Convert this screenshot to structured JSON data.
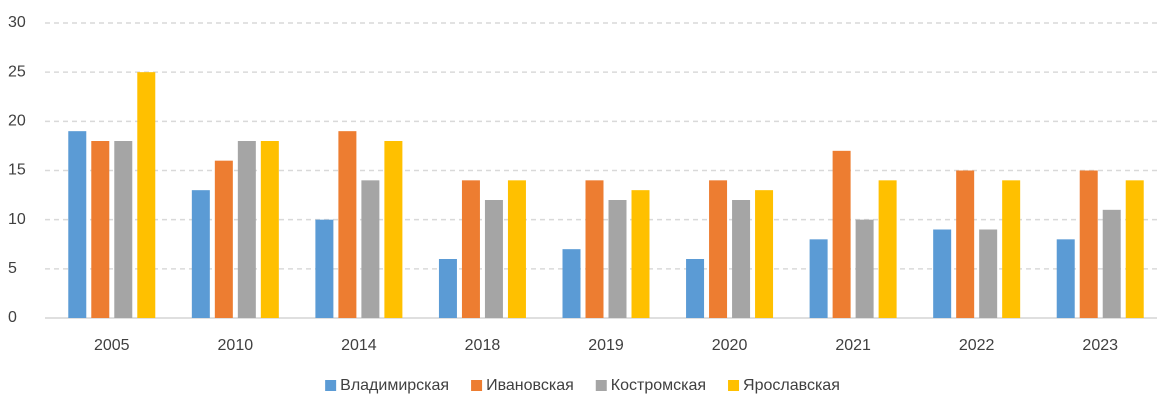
{
  "chart_data": {
    "type": "bar",
    "categories": [
      "2005",
      "2010",
      "2014",
      "2018",
      "2019",
      "2020",
      "2021",
      "2022",
      "2023"
    ],
    "series": [
      {
        "name": "Владимирская",
        "color": "#5b9bd5",
        "values": [
          19,
          13,
          10,
          6,
          7,
          6,
          8,
          9,
          8
        ]
      },
      {
        "name": "Ивановская",
        "color": "#ed7d31",
        "values": [
          18,
          16,
          19,
          14,
          14,
          14,
          17,
          15,
          15
        ]
      },
      {
        "name": "Костромская",
        "color": "#a5a5a5",
        "values": [
          18,
          18,
          14,
          12,
          12,
          12,
          10,
          9,
          11
        ]
      },
      {
        "name": "Ярославская",
        "color": "#ffc000",
        "values": [
          25,
          18,
          18,
          14,
          13,
          13,
          14,
          14,
          14
        ]
      }
    ],
    "ylim": [
      0,
      30
    ],
    "yticks": [
      0,
      5,
      10,
      15,
      20,
      25,
      30
    ],
    "grid": true,
    "legend": "bottom"
  }
}
